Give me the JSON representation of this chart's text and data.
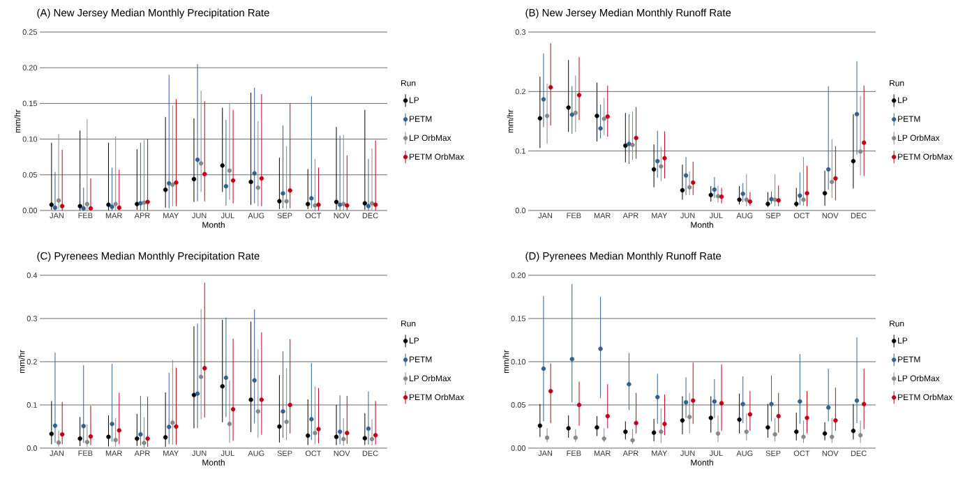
{
  "chart_data": [
    {
      "type": "scatter",
      "title": "(A) New Jersey Median Monthly Precipitation Rate",
      "xlabel": "Month",
      "ylabel": "mm/hr",
      "legend_title": "Run",
      "legend": "right",
      "grid": "y",
      "marker": "circle",
      "categories": [
        "JAN",
        "FEB",
        "MAR",
        "APR",
        "MAY",
        "JUN",
        "JUL",
        "AUG",
        "SEP",
        "OCT",
        "NOV",
        "DEC"
      ],
      "ylim": [
        0,
        0.25
      ],
      "yticks": [
        {
          "value": 0,
          "label": "0.00"
        },
        {
          "value": 0.05,
          "label": "0.05"
        },
        {
          "value": 0.1,
          "label": "0.10"
        },
        {
          "value": 0.15,
          "label": "0.15"
        },
        {
          "value": 0.2,
          "label": "0.20"
        },
        {
          "value": 0.25,
          "label": "0.25"
        }
      ],
      "series": [
        {
          "name": "LP",
          "color": "#000000",
          "values": [
            0.008,
            0.006,
            0.008,
            0.009,
            0.029,
            0.044,
            0.063,
            0.04,
            0.013,
            0.009,
            0.012,
            0.01
          ],
          "errors": [
            [
              0.001,
              0.095
            ],
            [
              0,
              0.112
            ],
            [
              0,
              0.095
            ],
            [
              0.001,
              0.086
            ],
            [
              0.004,
              0.131
            ],
            [
              0.012,
              0.129
            ],
            [
              0.026,
              0.144
            ],
            [
              0.008,
              0.165
            ],
            [
              0.002,
              0.074
            ],
            [
              0.002,
              0.058
            ],
            [
              0.001,
              0.117
            ],
            [
              0.001,
              0.141
            ]
          ]
        },
        {
          "name": "PETM",
          "color": "#33608f",
          "values": [
            0.004,
            0.003,
            0.005,
            0.01,
            0.038,
            0.071,
            0.034,
            0.052,
            0.024,
            0.017,
            0.008,
            0.006
          ],
          "errors": [
            [
              0,
              0.054
            ],
            [
              0,
              0.032
            ],
            [
              0,
              0.06
            ],
            [
              0,
              0.095
            ],
            [
              0.003,
              0.19
            ],
            [
              0.013,
              0.205
            ],
            [
              0.007,
              0.127
            ],
            [
              0.01,
              0.172
            ],
            [
              0.003,
              0.119
            ],
            [
              0.003,
              0.16
            ],
            [
              0,
              0.105
            ],
            [
              0,
              0.072
            ]
          ]
        },
        {
          "name": "LP OrbMax",
          "color": "#888888",
          "values": [
            0.014,
            0.009,
            0.009,
            0.011,
            0.036,
            0.066,
            0.056,
            0.032,
            0.013,
            0.007,
            0.009,
            0.01
          ],
          "errors": [
            [
              0.002,
              0.107
            ],
            [
              0,
              0.128
            ],
            [
              0,
              0.104
            ],
            [
              0,
              0.099
            ],
            [
              0.006,
              0.147
            ],
            [
              0.026,
              0.168
            ],
            [
              0.015,
              0.15
            ],
            [
              0.006,
              0.125
            ],
            [
              0.002,
              0.09
            ],
            [
              0,
              0.072
            ],
            [
              0,
              0.106
            ],
            [
              0,
              0.087
            ]
          ]
        },
        {
          "name": "PETM OrbMax",
          "color": "#c0001a",
          "values": [
            0.006,
            0.003,
            0.004,
            0.012,
            0.039,
            0.051,
            0.042,
            0.045,
            0.028,
            0.008,
            0.007,
            0.008
          ],
          "errors": [
            [
              0,
              0.085
            ],
            [
              0,
              0.045
            ],
            [
              0,
              0.057
            ],
            [
              0,
              0.1
            ],
            [
              0.006,
              0.156
            ],
            [
              0.013,
              0.153
            ],
            [
              0.01,
              0.141
            ],
            [
              0.006,
              0.163
            ],
            [
              0.003,
              0.15
            ],
            [
              0,
              0.06
            ],
            [
              0,
              0.077
            ],
            [
              0,
              0.098
            ]
          ]
        }
      ]
    },
    {
      "type": "scatter",
      "title": "(B) New Jersey Median Monthly Runoff Rate",
      "xlabel": "Month",
      "ylabel": "mm/hr",
      "legend_title": "Run",
      "legend": "right",
      "grid": "y",
      "marker": "circle",
      "categories": [
        "JAN",
        "FEB",
        "MAR",
        "APR",
        "MAY",
        "JUN",
        "JUL",
        "AUG",
        "SEP",
        "OCT",
        "NOV",
        "DEC"
      ],
      "ylim": [
        0,
        0.3
      ],
      "yticks": [
        {
          "value": 0,
          "label": "0.0"
        },
        {
          "value": 0.1,
          "label": "0.1"
        },
        {
          "value": 0.2,
          "label": "0.2"
        },
        {
          "value": 0.3,
          "label": "0.3"
        }
      ],
      "series": [
        {
          "name": "LP",
          "color": "#000000",
          "values": [
            0.155,
            0.173,
            0.159,
            0.109,
            0.069,
            0.034,
            0.026,
            0.018,
            0.011,
            0.011,
            0.029,
            0.083
          ],
          "errors": [
            [
              0.105,
              0.225
            ],
            [
              0.132,
              0.253
            ],
            [
              0.116,
              0.215
            ],
            [
              0.081,
              0.164
            ],
            [
              0.039,
              0.111
            ],
            [
              0.018,
              0.077
            ],
            [
              0.015,
              0.041
            ],
            [
              0.01,
              0.041
            ],
            [
              0.006,
              0.031
            ],
            [
              0.006,
              0.038
            ],
            [
              0.008,
              0.067
            ],
            [
              0.037,
              0.162
            ]
          ]
        },
        {
          "name": "PETM",
          "color": "#33608f",
          "values": [
            0.187,
            0.161,
            0.138,
            0.112,
            0.083,
            0.059,
            0.035,
            0.028,
            0.019,
            0.025,
            0.069,
            0.162
          ],
          "errors": [
            [
              0.14,
              0.264
            ],
            [
              0.129,
              0.209
            ],
            [
              0.121,
              0.178
            ],
            [
              0.078,
              0.162
            ],
            [
              0.055,
              0.134
            ],
            [
              0.026,
              0.09
            ],
            [
              0.021,
              0.056
            ],
            [
              0.014,
              0.046
            ],
            [
              0.011,
              0.032
            ],
            [
              0.009,
              0.064
            ],
            [
              0.035,
              0.209
            ],
            [
              0.094,
              0.251
            ]
          ]
        },
        {
          "name": "LP OrbMax",
          "color": "#888888",
          "values": [
            0.159,
            0.164,
            0.154,
            0.11,
            0.074,
            0.039,
            0.024,
            0.018,
            0.018,
            0.018,
            0.048,
            0.099
          ],
          "errors": [
            [
              0.112,
              0.213
            ],
            [
              0.132,
              0.227
            ],
            [
              0.127,
              0.189
            ],
            [
              0.085,
              0.166
            ],
            [
              0.049,
              0.107
            ],
            [
              0.026,
              0.066
            ],
            [
              0.013,
              0.042
            ],
            [
              0.007,
              0.061
            ],
            [
              0.007,
              0.061
            ],
            [
              0.008,
              0.09
            ],
            [
              0.021,
              0.12
            ],
            [
              0.059,
              0.192
            ]
          ]
        },
        {
          "name": "PETM OrbMax",
          "color": "#c0001a",
          "values": [
            0.207,
            0.194,
            0.158,
            0.122,
            0.088,
            0.047,
            0.023,
            0.015,
            0.017,
            0.029,
            0.054,
            0.114
          ],
          "errors": [
            [
              0.143,
              0.281
            ],
            [
              0.152,
              0.258
            ],
            [
              0.124,
              0.21
            ],
            [
              0.087,
              0.174
            ],
            [
              0.054,
              0.133
            ],
            [
              0.026,
              0.082
            ],
            [
              0.012,
              0.038
            ],
            [
              0.008,
              0.031
            ],
            [
              0.007,
              0.042
            ],
            [
              0.007,
              0.075
            ],
            [
              0.017,
              0.108
            ],
            [
              0.058,
              0.21
            ]
          ]
        }
      ]
    },
    {
      "type": "scatter",
      "title": "(C) Pyrenees Median Monthly Precipitation Rate",
      "xlabel": "Month",
      "ylabel": "mm/hr",
      "legend_title": "Run",
      "legend": "right",
      "grid": "y",
      "marker": "circle",
      "categories": [
        "JAN",
        "FEB",
        "MAR",
        "APR",
        "MAY",
        "JUN",
        "JUL",
        "AUG",
        "SEP",
        "OCT",
        "NOV",
        "DEC"
      ],
      "ylim": [
        0,
        0.4
      ],
      "yticks": [
        {
          "value": 0,
          "label": "0.0"
        },
        {
          "value": 0.1,
          "label": "0.1"
        },
        {
          "value": 0.2,
          "label": "0.2"
        },
        {
          "value": 0.3,
          "label": "0.3"
        },
        {
          "value": 0.4,
          "label": "0.4"
        }
      ],
      "series": [
        {
          "name": "LP",
          "color": "#000000",
          "values": [
            0.033,
            0.022,
            0.026,
            0.022,
            0.025,
            0.123,
            0.143,
            0.112,
            0.05,
            0.029,
            0.026,
            0.023
          ],
          "errors": [
            [
              0.009,
              0.109
            ],
            [
              0.005,
              0.072
            ],
            [
              0.004,
              0.076
            ],
            [
              0.005,
              0.079
            ],
            [
              0.003,
              0.129
            ],
            [
              0.046,
              0.282
            ],
            [
              0.06,
              0.297
            ],
            [
              0.037,
              0.293
            ],
            [
              0.013,
              0.169
            ],
            [
              0.007,
              0.113
            ],
            [
              0.007,
              0.1
            ],
            [
              0.007,
              0.081
            ]
          ]
        },
        {
          "name": "PETM",
          "color": "#33608f",
          "values": [
            0.052,
            0.051,
            0.056,
            0.032,
            0.049,
            0.126,
            0.163,
            0.157,
            0.085,
            0.067,
            0.038,
            0.045
          ],
          "errors": [
            [
              0.012,
              0.221
            ],
            [
              0.012,
              0.192
            ],
            [
              0.015,
              0.195
            ],
            [
              0.006,
              0.121
            ],
            [
              0.009,
              0.174
            ],
            [
              0.046,
              0.288
            ],
            [
              0.072,
              0.302
            ],
            [
              0.057,
              0.321
            ],
            [
              0.024,
              0.224
            ],
            [
              0.019,
              0.197
            ],
            [
              0.009,
              0.122
            ],
            [
              0.008,
              0.131
            ]
          ]
        },
        {
          "name": "LP OrbMax",
          "color": "#888888",
          "values": [
            0.013,
            0.014,
            0.019,
            0.012,
            0.059,
            0.165,
            0.056,
            0.085,
            0.061,
            0.035,
            0.021,
            0.021
          ],
          "errors": [
            [
              0.003,
              0.041
            ],
            [
              0.003,
              0.055
            ],
            [
              0.003,
              0.07
            ],
            [
              0.001,
              0.071
            ],
            [
              0.008,
              0.204
            ],
            [
              0.067,
              0.322
            ],
            [
              0.012,
              0.156
            ],
            [
              0.024,
              0.229
            ],
            [
              0.019,
              0.185
            ],
            [
              0.009,
              0.143
            ],
            [
              0.006,
              0.069
            ],
            [
              0.006,
              0.067
            ]
          ]
        },
        {
          "name": "PETM OrbMax",
          "color": "#c0001a",
          "values": [
            0.032,
            0.027,
            0.041,
            0.022,
            0.05,
            0.185,
            0.09,
            0.112,
            0.1,
            0.044,
            0.035,
            0.03
          ],
          "errors": [
            [
              0.009,
              0.107
            ],
            [
              0.007,
              0.098
            ],
            [
              0.009,
              0.128
            ],
            [
              0.003,
              0.119
            ],
            [
              0.008,
              0.186
            ],
            [
              0.071,
              0.383
            ],
            [
              0.017,
              0.253
            ],
            [
              0.031,
              0.268
            ],
            [
              0.034,
              0.252
            ],
            [
              0.011,
              0.139
            ],
            [
              0.01,
              0.121
            ],
            [
              0.008,
              0.109
            ]
          ]
        }
      ]
    },
    {
      "type": "scatter",
      "title": "(D) Pyrenees Median Monthly Runoff Rate",
      "xlabel": "Month",
      "ylabel": "mm/hr",
      "legend_title": "Run",
      "legend": "right",
      "grid": "y",
      "marker": "circle",
      "categories": [
        "JAN",
        "FEB",
        "MAR",
        "APR",
        "MAY",
        "JUN",
        "JUL",
        "AUG",
        "SEP",
        "OCT",
        "NOV",
        "DEC"
      ],
      "ylim": [
        0,
        0.2
      ],
      "yticks": [
        {
          "value": 0,
          "label": "0.00"
        },
        {
          "value": 0.05,
          "label": "0.05"
        },
        {
          "value": 0.1,
          "label": "0.10"
        },
        {
          "value": 0.15,
          "label": "0.15"
        },
        {
          "value": 0.2,
          "label": "0.20"
        }
      ],
      "series": [
        {
          "name": "LP",
          "color": "#000000",
          "values": [
            0.026,
            0.023,
            0.024,
            0.019,
            0.018,
            0.032,
            0.035,
            0.033,
            0.024,
            0.019,
            0.017,
            0.02
          ],
          "errors": [
            [
              0.013,
              0.051
            ],
            [
              0.012,
              0.038
            ],
            [
              0.014,
              0.037
            ],
            [
              0.01,
              0.031
            ],
            [
              0.008,
              0.034
            ],
            [
              0.016,
              0.06
            ],
            [
              0.018,
              0.06
            ],
            [
              0.017,
              0.063
            ],
            [
              0.012,
              0.051
            ],
            [
              0.009,
              0.041
            ],
            [
              0.009,
              0.03
            ],
            [
              0.01,
              0.051
            ]
          ]
        },
        {
          "name": "PETM",
          "color": "#33608f",
          "values": [
            0.092,
            0.103,
            0.115,
            0.074,
            0.059,
            0.053,
            0.054,
            0.051,
            0.051,
            0.054,
            0.047,
            0.055
          ],
          "errors": [
            [
              0.031,
              0.176
            ],
            [
              0.053,
              0.19
            ],
            [
              0.058,
              0.175
            ],
            [
              0.044,
              0.11
            ],
            [
              0.028,
              0.086
            ],
            [
              0.035,
              0.082
            ],
            [
              0.035,
              0.08
            ],
            [
              0.029,
              0.083
            ],
            [
              0.031,
              0.084
            ],
            [
              0.028,
              0.109
            ],
            [
              0.031,
              0.092
            ],
            [
              0.029,
              0.128
            ]
          ]
        },
        {
          "name": "LP OrbMax",
          "color": "#888888",
          "values": [
            0.012,
            0.012,
            0.011,
            0.009,
            0.019,
            0.036,
            0.017,
            0.019,
            0.016,
            0.013,
            0.013,
            0.015
          ],
          "errors": [
            [
              0.007,
              0.023
            ],
            [
              0.007,
              0.022
            ],
            [
              0.007,
              0.023
            ],
            [
              0.005,
              0.022
            ],
            [
              0.006,
              0.046
            ],
            [
              0.017,
              0.064
            ],
            [
              0.007,
              0.038
            ],
            [
              0.009,
              0.04
            ],
            [
              0.008,
              0.035
            ],
            [
              0.006,
              0.032
            ],
            [
              0.006,
              0.035
            ],
            [
              0.006,
              0.032
            ]
          ]
        },
        {
          "name": "PETM OrbMax",
          "color": "#c0001a",
          "values": [
            0.066,
            0.05,
            0.037,
            0.029,
            0.028,
            0.055,
            0.052,
            0.039,
            0.037,
            0.035,
            0.032,
            0.051
          ],
          "errors": [
            [
              0.029,
              0.098
            ],
            [
              0.026,
              0.077
            ],
            [
              0.023,
              0.074
            ],
            [
              0.017,
              0.064
            ],
            [
              0.015,
              0.062
            ],
            [
              0.028,
              0.099
            ],
            [
              0.02,
              0.097
            ],
            [
              0.02,
              0.066
            ],
            [
              0.018,
              0.064
            ],
            [
              0.017,
              0.066
            ],
            [
              0.02,
              0.07
            ],
            [
              0.022,
              0.092
            ]
          ]
        }
      ]
    }
  ]
}
